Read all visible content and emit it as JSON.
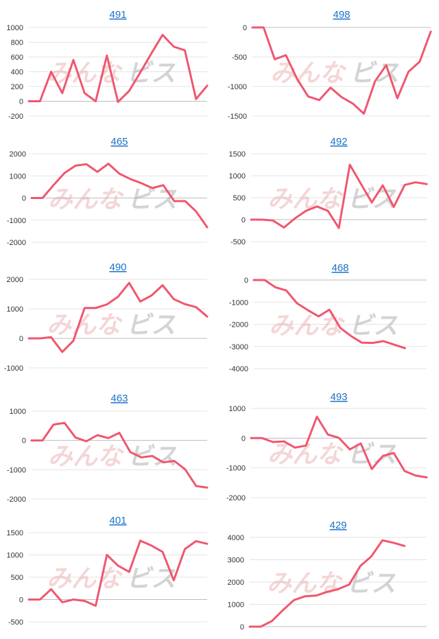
{
  "colors": {
    "line": "#f0566f",
    "title_link": "#1a73c9",
    "grid": "#e3e3e3"
  },
  "watermark": {
    "part1": "みんな",
    "part2": "ビス"
  },
  "chart_data": [
    {
      "type": "line",
      "title": "491",
      "yticks": [
        1000,
        800,
        600,
        400,
        200,
        0,
        -200
      ],
      "ylim": [
        -200,
        1000
      ],
      "values": [
        0,
        0,
        400,
        110,
        560,
        110,
        0,
        620,
        -10,
        140,
        390,
        650,
        900,
        740,
        690,
        30,
        210
      ]
    },
    {
      "type": "line",
      "title": "498",
      "yticks": [
        0,
        -500,
        -1000,
        -1500
      ],
      "ylim": [
        -1500,
        0
      ],
      "values": [
        0,
        0,
        -540,
        -470,
        -870,
        -1170,
        -1230,
        -1020,
        -1180,
        -1290,
        -1460,
        -910,
        -640,
        -1200,
        -750,
        -580,
        -70
      ]
    },
    {
      "type": "line",
      "title": "465",
      "yticks": [
        2000,
        1000,
        0,
        -1000,
        -2000
      ],
      "ylim": [
        -2000,
        2000
      ],
      "values": [
        0,
        0,
        580,
        1130,
        1460,
        1530,
        1180,
        1550,
        1100,
        860,
        670,
        450,
        580,
        -140,
        -140,
        -610,
        -1320
      ]
    },
    {
      "type": "line",
      "title": "492",
      "yticks": [
        1500,
        1000,
        500,
        0,
        -500
      ],
      "ylim": [
        -500,
        1500
      ],
      "values": [
        0,
        0,
        -20,
        -180,
        30,
        200,
        300,
        200,
        -190,
        1250,
        820,
        390,
        780,
        290,
        790,
        850,
        810
      ]
    },
    {
      "type": "line",
      "title": "490",
      "yticks": [
        2000,
        1000,
        0,
        -1000
      ],
      "ylim": [
        -1000,
        2000
      ],
      "values": [
        0,
        0,
        40,
        -460,
        -80,
        1030,
        1030,
        1150,
        1410,
        1880,
        1250,
        1450,
        1800,
        1330,
        1160,
        1060,
        740
      ]
    },
    {
      "type": "line",
      "title": "468",
      "yticks": [
        0,
        -1000,
        -2000,
        -3000,
        -4000
      ],
      "ylim": [
        -4000,
        0
      ],
      "values": [
        0,
        0,
        -330,
        -470,
        -1050,
        -1360,
        -1640,
        -1340,
        -2160,
        -2530,
        -2830,
        -2840,
        -2760,
        -2920,
        -3080
      ]
    },
    {
      "type": "line",
      "title": "463",
      "yticks": [
        1000,
        0,
        -1000,
        -2000
      ],
      "ylim": [
        -2000,
        1000
      ],
      "values": [
        0,
        0,
        540,
        600,
        100,
        -30,
        180,
        80,
        260,
        -400,
        -580,
        -530,
        -750,
        -700,
        -990,
        -1560,
        -1610
      ]
    },
    {
      "type": "line",
      "title": "493",
      "yticks": [
        1000,
        0,
        -1000,
        -2000
      ],
      "ylim": [
        -2000,
        1000
      ],
      "values": [
        0,
        0,
        -130,
        -110,
        -320,
        -250,
        720,
        120,
        10,
        -380,
        -180,
        -1040,
        -600,
        -500,
        -1110,
        -1260,
        -1320
      ]
    },
    {
      "type": "line",
      "title": "401",
      "yticks": [
        1500,
        1000,
        500,
        0,
        -500
      ],
      "ylim": [
        -500,
        1500
      ],
      "values": [
        0,
        0,
        230,
        -60,
        0,
        -30,
        -140,
        1000,
        760,
        620,
        1320,
        1210,
        1070,
        430,
        1130,
        1310,
        1250
      ]
    },
    {
      "type": "line",
      "title": "429",
      "yticks": [
        4000,
        3000,
        2000,
        1000,
        0
      ],
      "ylim": [
        0,
        4000
      ],
      "values": [
        0,
        0,
        250,
        740,
        1190,
        1360,
        1390,
        1560,
        1680,
        1890,
        2720,
        3150,
        3870,
        3760,
        3620
      ]
    }
  ]
}
